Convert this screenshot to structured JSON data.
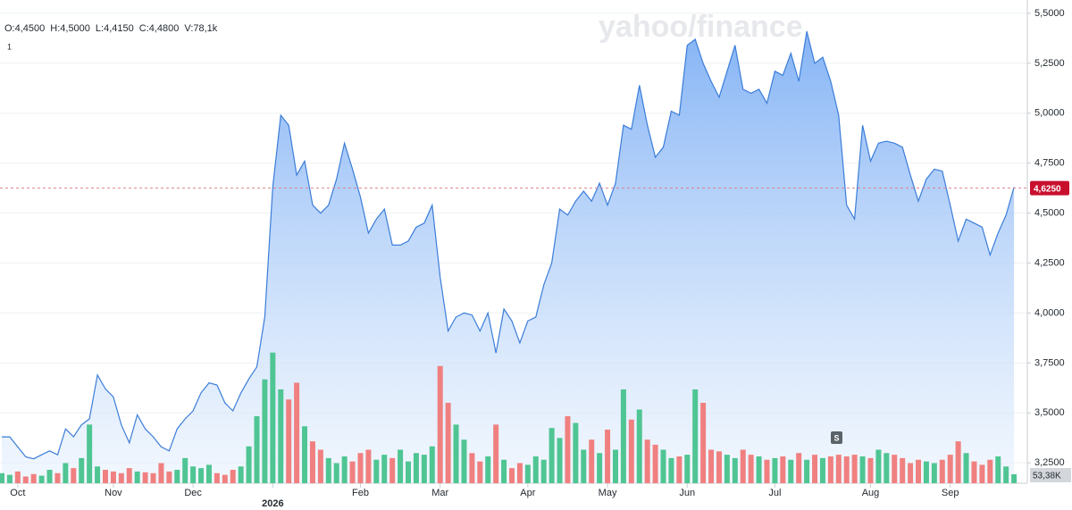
{
  "chart_data": {
    "type": "line",
    "info": [
      "O:4,4500",
      "H:4,5000",
      "L:4,4150",
      "C:4,4800",
      "V:78,1k"
    ],
    "interval_label": "1",
    "watermark": "yahoo/finance",
    "marker": "S",
    "categories": [
      null,
      null,
      "Oct",
      null,
      null,
      null,
      null,
      null,
      null,
      null,
      null,
      null,
      null,
      null,
      "Nov",
      null,
      null,
      null,
      null,
      null,
      null,
      null,
      null,
      null,
      "Dec",
      null,
      null,
      null,
      null,
      null,
      null,
      null,
      null,
      null,
      "2026",
      null,
      null,
      null,
      null,
      null,
      null,
      null,
      null,
      null,
      null,
      "Feb",
      null,
      null,
      null,
      null,
      null,
      null,
      null,
      null,
      null,
      "Mar",
      null,
      null,
      null,
      null,
      null,
      null,
      null,
      null,
      null,
      null,
      "Apr",
      null,
      null,
      null,
      null,
      null,
      null,
      null,
      null,
      null,
      "May",
      null,
      null,
      null,
      null,
      null,
      null,
      null,
      null,
      null,
      "Jun",
      null,
      null,
      null,
      null,
      null,
      null,
      null,
      null,
      null,
      null,
      "Jul",
      null,
      null,
      null,
      null,
      null,
      null,
      null,
      null,
      null,
      null,
      null,
      "Aug",
      null,
      null,
      null,
      null,
      null,
      null,
      null,
      null,
      null,
      "Sep",
      null,
      null,
      null,
      null,
      null,
      null,
      null,
      null
    ],
    "series": [
      {
        "color": "#3b7dd8",
        "values": [
          3.38,
          3.38,
          3.33,
          3.28,
          3.27,
          3.29,
          3.31,
          3.29,
          3.42,
          3.38,
          3.44,
          3.47,
          3.69,
          3.62,
          3.58,
          3.44,
          3.35,
          3.49,
          3.42,
          3.38,
          3.33,
          3.31,
          3.42,
          3.47,
          3.51,
          3.6,
          3.65,
          3.64,
          3.55,
          3.51,
          3.6,
          3.67,
          3.73,
          3.98,
          4.63,
          4.99,
          4.94,
          4.69,
          4.76,
          4.54,
          4.5,
          4.54,
          4.67,
          4.85,
          4.72,
          4.58,
          4.4,
          4.47,
          4.52,
          4.34,
          4.34,
          4.36,
          4.43,
          4.45,
          4.54,
          4.18,
          3.91,
          3.98,
          4.0,
          3.99,
          3.91,
          4.0,
          3.8,
          4.02,
          3.96,
          3.85,
          3.96,
          3.98,
          4.14,
          4.25,
          4.52,
          4.49,
          4.56,
          4.61,
          4.56,
          4.65,
          4.54,
          4.65,
          4.94,
          4.92,
          5.14,
          4.94,
          4.78,
          4.83,
          5.01,
          4.99,
          5.34,
          5.37,
          5.25,
          5.16,
          5.08,
          5.21,
          5.34,
          5.12,
          5.1,
          5.12,
          5.05,
          5.21,
          5.19,
          5.3,
          5.16,
          5.41,
          5.25,
          5.28,
          5.16,
          4.99,
          4.54,
          4.47,
          4.94,
          4.76,
          4.85,
          4.86,
          4.85,
          4.83,
          4.69,
          4.56,
          4.67,
          4.72,
          4.71,
          4.54,
          4.36,
          4.47,
          4.45,
          4.43,
          4.29,
          4.4,
          4.49,
          4.63
        ]
      },
      {
        "axis": "volume",
        "up_color": "#4fc593",
        "down_color": "#f08080",
        "values": [
          60,
          50,
          70,
          40,
          55,
          45,
          80,
          60,
          120,
          90,
          150,
          350,
          100,
          80,
          70,
          60,
          90,
          70,
          65,
          60,
          120,
          70,
          80,
          150,
          100,
          90,
          110,
          60,
          50,
          80,
          100,
          220,
          400,
          620,
          780,
          560,
          500,
          600,
          340,
          250,
          200,
          150,
          120,
          160,
          130,
          180,
          200,
          140,
          170,
          150,
          200,
          130,
          180,
          170,
          220,
          700,
          480,
          350,
          260,
          180,
          130,
          160,
          350,
          140,
          90,
          120,
          110,
          160,
          140,
          330,
          270,
          400,
          360,
          200,
          260,
          180,
          320,
          200,
          560,
          380,
          440,
          260,
          230,
          200,
          150,
          160,
          170,
          560,
          480,
          200,
          190,
          170,
          150,
          200,
          170,
          160,
          140,
          150,
          160,
          140,
          180,
          140,
          170,
          150,
          160,
          170,
          160,
          170,
          160,
          150,
          200,
          180,
          170,
          150,
          120,
          140,
          130,
          120,
          140,
          170,
          250,
          180,
          130,
          110,
          140,
          160,
          100,
          53.38
        ]
      }
    ],
    "current_price": {
      "value": 4.625,
      "label": "4,6250"
    },
    "current_volume": {
      "value": 53.38,
      "label": "53,38K"
    },
    "ylim": [
      3.148,
      5.531
    ],
    "yticks": [
      {
        "value": 3.25,
        "label": "3,2500"
      },
      {
        "value": 3.5,
        "label": "3,5000"
      },
      {
        "value": 3.75,
        "label": "3,7500"
      },
      {
        "value": 4,
        "label": "4,0000"
      },
      {
        "value": 4.25,
        "label": "4,2500"
      },
      {
        "value": 4.5,
        "label": "4,5000"
      },
      {
        "value": 4.75,
        "label": "4,7500"
      },
      {
        "value": 5,
        "label": "5,0000"
      },
      {
        "value": 5.25,
        "label": "5,2500"
      },
      {
        "value": 5.5,
        "label": "5,5000"
      }
    ],
    "volume_ylim": [
      0,
      800
    ],
    "grid": true
  }
}
